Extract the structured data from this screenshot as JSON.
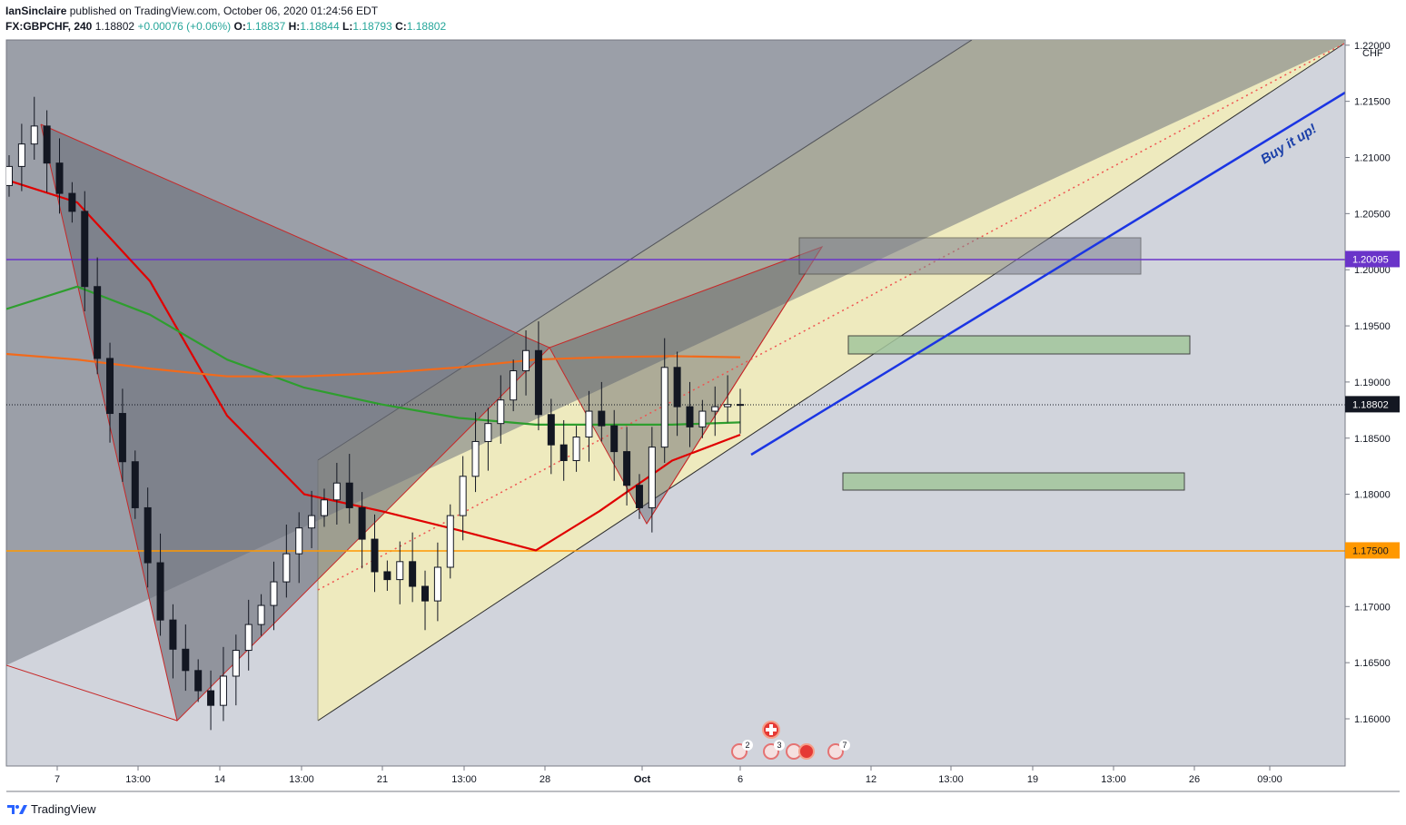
{
  "header": {
    "author": "IanSinclaire",
    "published": "published on TradingView.com, October 06, 2020 01:24:56 EDT",
    "symbol": "FX:GBPCHF, 240",
    "last": "1.18802",
    "change": "+0.00076 (+0.06%)",
    "o_label": "O:",
    "o_value": "1.18837",
    "h_label": "H:",
    "h_value": "1.18844",
    "l_label": "L:",
    "l_value": "1.18793",
    "c_label": "C:",
    "c_value": "1.18802"
  },
  "footer": {
    "brand": "TradingView"
  },
  "colors": {
    "chart_bg": "#d1d4dc",
    "up": "#ffffff",
    "down": "#131722",
    "ma_red": "#e00000",
    "ma_green": "#2e9e2e",
    "ma_orange": "#f26a1b",
    "trend_blue": "#1b35e3",
    "purple_line": "#6a34c9",
    "orange_line": "#ff9800",
    "channel_fill": "#f3edb8",
    "pattern_fill": "#5d5f69",
    "zone_green": "#a3c69c",
    "zone_grey": "#7f8290"
  },
  "chart_data": {
    "type": "candlestick",
    "price_axis": {
      "currency": "CHF",
      "ticks": [
        "1.16000",
        "1.16500",
        "1.17000",
        "1.17500",
        "1.18000",
        "1.18500",
        "1.19000",
        "1.19500",
        "1.20000",
        "1.20500",
        "1.21000",
        "1.21500",
        "1.22000"
      ],
      "ylim": [
        1.156,
        1.223
      ]
    },
    "time_axis": {
      "ticks": [
        "7",
        "13:00",
        "14",
        "13:00",
        "21",
        "13:00",
        "28",
        "Oct",
        "6",
        "12",
        "13:00",
        "19",
        "13:00",
        "26",
        "09:00"
      ]
    },
    "price_labels": [
      {
        "name": "last-price",
        "value": "1.18802",
        "price": 1.18802
      },
      {
        "name": "purple-level",
        "value": "1.20095",
        "price": 1.20095
      },
      {
        "name": "orange-level",
        "value": "1.17500",
        "price": 1.175
      }
    ],
    "annotation": "Buy it up!",
    "ohlc_sample": {
      "start": "Sep 04 2020",
      "interval": "4h",
      "open": [
        1.2075,
        1.2092,
        1.2112,
        1.2128,
        1.2095,
        1.2068,
        1.2052,
        1.1985,
        1.1921,
        1.1872,
        1.1829,
        1.1788,
        1.1739,
        1.1688,
        1.1662,
        1.1643,
        1.1625,
        1.1612,
        1.1638,
        1.1661,
        1.1684,
        1.1701,
        1.1722,
        1.1747,
        1.177,
        1.1781,
        1.1795,
        1.181,
        1.1788,
        1.176,
        1.1731,
        1.1724,
        1.174,
        1.1718,
        1.1705,
        1.1735,
        1.1781,
        1.1816,
        1.1847,
        1.1863,
        1.1884,
        1.191,
        1.1928,
        1.1871,
        1.1844,
        1.183,
        1.1851,
        1.1874,
        1.1861,
        1.1838,
        1.1808,
        1.1788,
        1.1842,
        1.1913,
        1.1878,
        1.186,
        1.1874,
        1.1878,
        1.188
      ],
      "close": [
        1.2092,
        1.2112,
        1.2128,
        1.2095,
        1.2068,
        1.2052,
        1.1985,
        1.1921,
        1.1872,
        1.1829,
        1.1788,
        1.1739,
        1.1688,
        1.1662,
        1.1643,
        1.1625,
        1.1612,
        1.1638,
        1.1661,
        1.1684,
        1.1701,
        1.1722,
        1.1747,
        1.177,
        1.1781,
        1.1795,
        1.181,
        1.1788,
        1.176,
        1.1731,
        1.1724,
        1.174,
        1.1718,
        1.1705,
        1.1735,
        1.1781,
        1.1816,
        1.1847,
        1.1863,
        1.1884,
        1.191,
        1.1928,
        1.1871,
        1.1844,
        1.183,
        1.1851,
        1.1874,
        1.1861,
        1.1838,
        1.1808,
        1.1788,
        1.1842,
        1.1913,
        1.1878,
        1.186,
        1.1874,
        1.1878,
        1.188,
        1.188
      ]
    },
    "moving_averages": [
      {
        "color": "#e00000",
        "values": [
          1.208,
          1.206,
          1.199,
          1.187,
          1.18,
          1.1785,
          1.1768,
          1.175,
          1.1785,
          1.183,
          1.1853
        ]
      },
      {
        "color": "#2e9e2e",
        "values": [
          1.1965,
          1.1985,
          1.196,
          1.192,
          1.1895,
          1.188,
          1.1868,
          1.1862,
          1.1862,
          1.1862,
          1.1864
        ]
      },
      {
        "color": "#f26a1b",
        "values": [
          1.1925,
          1.192,
          1.1912,
          1.1905,
          1.1905,
          1.1908,
          1.1913,
          1.192,
          1.1922,
          1.1923,
          1.1922
        ]
      }
    ],
    "zones": [
      {
        "name": "grey-zone",
        "top": 1.203,
        "bottom": 1.1997
      },
      {
        "name": "green-zone-upper",
        "top": 1.1942,
        "bottom": 1.1926
      },
      {
        "name": "green-zone-lower",
        "top": 1.182,
        "bottom": 1.1805
      }
    ]
  }
}
